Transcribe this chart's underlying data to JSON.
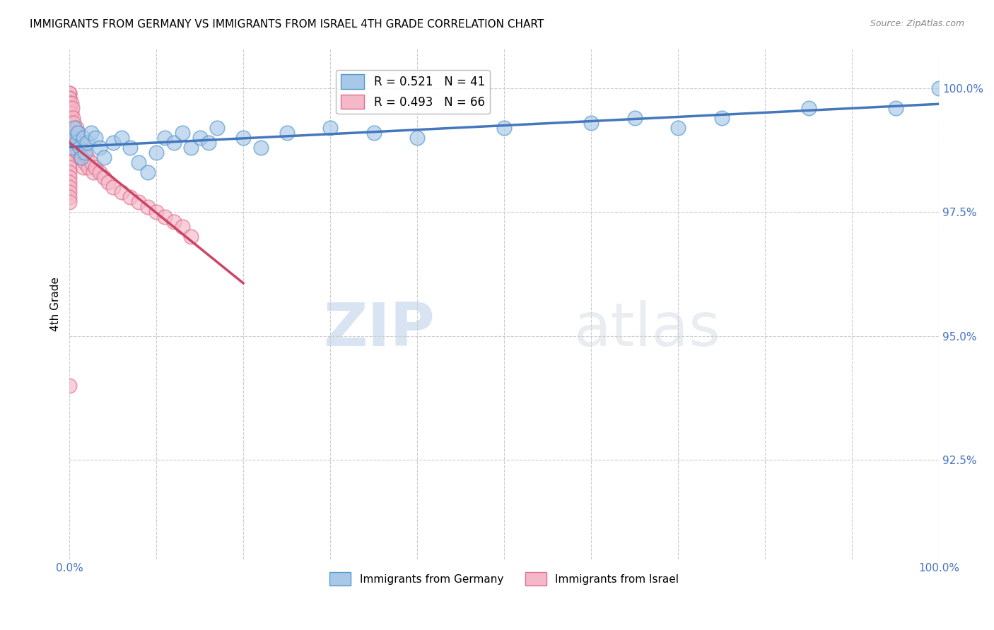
{
  "title": "IMMIGRANTS FROM GERMANY VS IMMIGRANTS FROM ISRAEL 4TH GRADE CORRELATION CHART",
  "source": "Source: ZipAtlas.com",
  "ylabel": "4th Grade",
  "legend_germany": "Immigrants from Germany",
  "legend_israel": "Immigrants from Israel",
  "R_germany": 0.521,
  "N_germany": 41,
  "R_israel": 0.493,
  "N_israel": 66,
  "color_germany": "#a8c8e8",
  "color_germany_edge": "#5599cc",
  "color_germany_line": "#4477bb",
  "color_israel": "#f4b8c8",
  "color_israel_edge": "#e07090",
  "color_israel_line": "#cc4466",
  "xlim": [
    0.0,
    1.0
  ],
  "ylim": [
    0.905,
    1.008
  ],
  "yticks": [
    0.925,
    0.95,
    0.975,
    1.0
  ],
  "ytick_labels": [
    "92.5%",
    "95.0%",
    "97.5%",
    "100.0%"
  ],
  "xticks": [
    0.0,
    0.1,
    0.2,
    0.3,
    0.4,
    0.5,
    0.6,
    0.7,
    0.8,
    0.9,
    1.0
  ],
  "xtick_labels": [
    "0.0%",
    "",
    "",
    "",
    "",
    "",
    "",
    "",
    "",
    "",
    "100.0%"
  ],
  "germany_x": [
    0.002,
    0.004,
    0.006,
    0.008,
    0.01,
    0.012,
    0.014,
    0.016,
    0.018,
    0.02,
    0.025,
    0.03,
    0.035,
    0.04,
    0.05,
    0.06,
    0.07,
    0.08,
    0.09,
    0.1,
    0.11,
    0.12,
    0.13,
    0.14,
    0.15,
    0.16,
    0.17,
    0.2,
    0.22,
    0.25,
    0.3,
    0.35,
    0.4,
    0.5,
    0.6,
    0.65,
    0.7,
    0.75,
    0.85,
    0.95,
    1.0
  ],
  "germany_y": [
    0.99,
    0.988,
    0.992,
    0.989,
    0.991,
    0.988,
    0.986,
    0.99,
    0.987,
    0.989,
    0.991,
    0.99,
    0.988,
    0.986,
    0.989,
    0.99,
    0.988,
    0.985,
    0.983,
    0.987,
    0.99,
    0.989,
    0.991,
    0.988,
    0.99,
    0.989,
    0.992,
    0.99,
    0.988,
    0.991,
    0.992,
    0.991,
    0.99,
    0.992,
    0.993,
    0.994,
    0.992,
    0.994,
    0.996,
    0.996,
    1.0
  ],
  "israel_x": [
    0.0,
    0.0,
    0.0,
    0.0,
    0.0,
    0.0,
    0.0,
    0.0,
    0.0,
    0.0,
    0.0,
    0.0,
    0.0,
    0.0,
    0.0,
    0.0,
    0.0,
    0.0,
    0.0,
    0.0,
    0.002,
    0.002,
    0.003,
    0.003,
    0.004,
    0.004,
    0.005,
    0.005,
    0.006,
    0.007,
    0.008,
    0.008,
    0.009,
    0.01,
    0.01,
    0.012,
    0.013,
    0.015,
    0.016,
    0.018,
    0.02,
    0.022,
    0.025,
    0.028,
    0.03,
    0.035,
    0.04,
    0.045,
    0.05,
    0.06,
    0.07,
    0.08,
    0.09,
    0.1,
    0.11,
    0.12,
    0.13,
    0.14,
    0.0,
    0.0,
    0.0,
    0.0,
    0.0,
    0.0,
    0.0,
    0.0
  ],
  "israel_y": [
    0.999,
    0.999,
    0.998,
    0.998,
    0.997,
    0.997,
    0.996,
    0.996,
    0.995,
    0.994,
    0.993,
    0.992,
    0.991,
    0.99,
    0.989,
    0.988,
    0.987,
    0.986,
    0.985,
    0.984,
    0.997,
    0.995,
    0.996,
    0.993,
    0.994,
    0.991,
    0.993,
    0.99,
    0.991,
    0.99,
    0.992,
    0.988,
    0.99,
    0.991,
    0.987,
    0.989,
    0.986,
    0.987,
    0.984,
    0.985,
    0.986,
    0.984,
    0.985,
    0.983,
    0.984,
    0.983,
    0.982,
    0.981,
    0.98,
    0.979,
    0.978,
    0.977,
    0.976,
    0.975,
    0.974,
    0.973,
    0.972,
    0.97,
    0.983,
    0.982,
    0.981,
    0.98,
    0.979,
    0.978,
    0.977,
    0.94
  ],
  "watermark_zip": "ZIP",
  "watermark_atlas": "atlas",
  "background_color": "#ffffff",
  "grid_color": "#cccccc",
  "title_fontsize": 11,
  "axis_label_color": "#4472c4",
  "source_color": "#888888"
}
